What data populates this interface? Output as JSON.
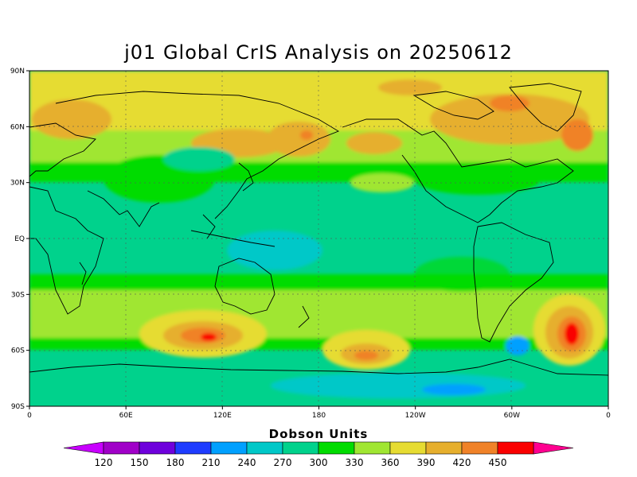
{
  "title": "j01 Global CrIS Analysis on 20250612",
  "lat_ticks": [
    "90N",
    "60N",
    "30N",
    "EQ",
    "30S",
    "60S",
    "90S"
  ],
  "lon_ticks": [
    "0",
    "60E",
    "120E",
    "180",
    "120W",
    "60W",
    "0"
  ],
  "colorbar": {
    "units": "Dobson Units",
    "labels": [
      "120",
      "150",
      "180",
      "210",
      "240",
      "270",
      "300",
      "330",
      "360",
      "390",
      "420",
      "450"
    ],
    "colors": [
      "#a000c8",
      "#6e00dc",
      "#1e3cff",
      "#00a0ff",
      "#00c8c8",
      "#00d28c",
      "#00dc00",
      "#a0e632",
      "#e6dc32",
      "#e6af2d",
      "#f08228",
      "#fa0000"
    ],
    "low_color": "#c800ff",
    "high_color": "#ff0090"
  },
  "chart_data": {
    "type": "heatmap",
    "title": "j01 Global CrIS Analysis on 20250612",
    "value_units": "Dobson Units",
    "lat_range": [
      -90,
      90
    ],
    "lon_range": [
      0,
      360
    ],
    "levels": [
      120,
      150,
      180,
      210,
      240,
      270,
      300,
      330,
      360,
      390,
      420,
      450
    ],
    "features": [
      {
        "lat": 75,
        "lon": 180,
        "value": 345
      },
      {
        "lat": 55,
        "lon": 90,
        "value": 375
      },
      {
        "lat": 58,
        "lon": 148,
        "value": 385
      },
      {
        "lat": 62,
        "lon": 200,
        "value": 360
      },
      {
        "lat": 65,
        "lon": 290,
        "value": 380
      },
      {
        "lat": 0,
        "lon": 150,
        "value": 250
      },
      {
        "lat": -50,
        "lon": 110,
        "value": 400
      },
      {
        "lat": -52,
        "lon": 113,
        "value": 430
      },
      {
        "lat": -57,
        "lon": 168,
        "value": 395
      },
      {
        "lat": -46,
        "lon": 340,
        "value": 430
      },
      {
        "lat": -80,
        "lon": 220,
        "value": 230
      }
    ]
  }
}
